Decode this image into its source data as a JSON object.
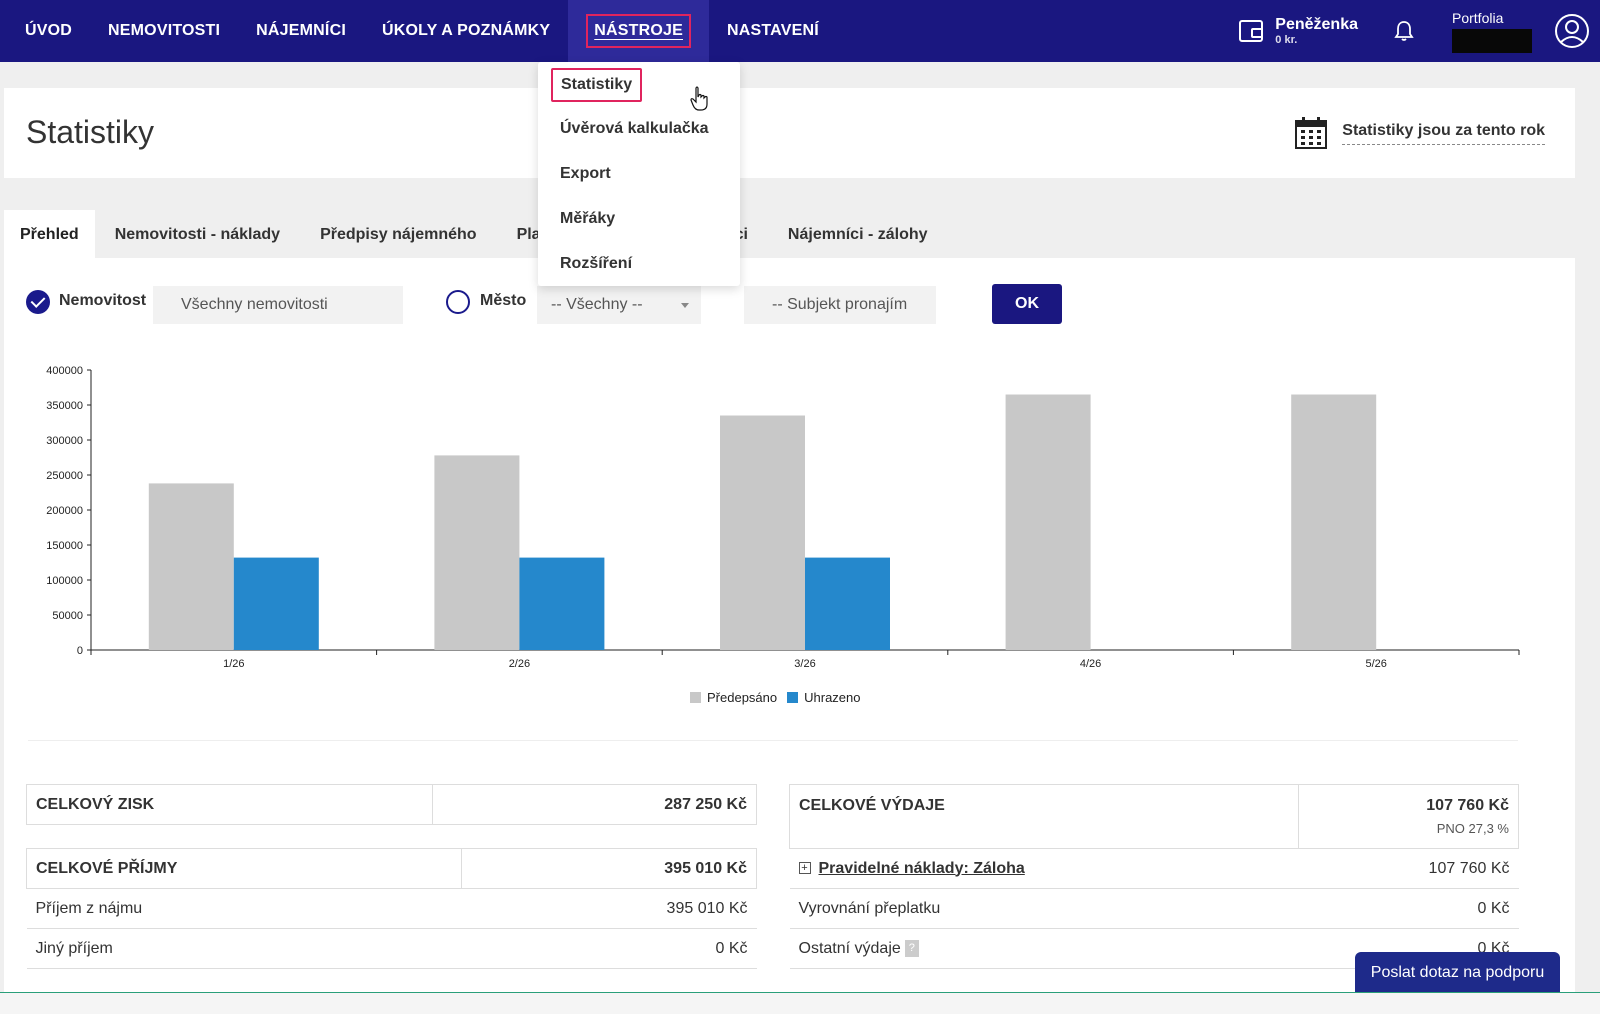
{
  "nav": {
    "items": [
      "ÚVOD",
      "NEMOVITOSTI",
      "NÁJEMNÍCI",
      "ÚKOLY A POZNÁMKY",
      "NÁSTROJE",
      "NASTAVENÍ"
    ],
    "active": "NÁSTROJE",
    "wallet": {
      "title": "Peněženka",
      "amount": "0 kr."
    },
    "portfolia_label": "Portfolia",
    "icons": {
      "wallet": "wallet-icon",
      "bell": "bell-icon",
      "user": "user-icon"
    }
  },
  "dropdown": {
    "items": [
      "Statistiky",
      "Úvěrová kalkulačka",
      "Export",
      "Měřáky",
      "Rozšíření"
    ],
    "active": "Statistiky"
  },
  "header": {
    "title": "Statistiky",
    "period": "Statistiky jsou za tento rok",
    "calendar_icon": "calendar-icon"
  },
  "tabs": [
    "Přehled",
    "Nemovitosti - náklady",
    "Předpisy nájemného",
    "Platby",
    "ci",
    "Nájemníci - zálohy"
  ],
  "filters": {
    "property_label": "Nemovitost",
    "property_value": "Všechny nemovitosti",
    "city_label": "Město",
    "city_value": "-- Všechny --",
    "subject_placeholder": "-- Subjekt pronajím",
    "ok_label": "OK"
  },
  "chart_data": {
    "type": "bar",
    "categories": [
      "1/26",
      "2/26",
      "3/26",
      "4/26",
      "5/26"
    ],
    "series": [
      {
        "name": "Předepsáno",
        "color": "#c8c8c8",
        "values": [
          238000,
          278000,
          335000,
          365000,
          365000
        ]
      },
      {
        "name": "Uhrazeno",
        "color": "#2588cc",
        "values": [
          132000,
          132000,
          132000,
          0,
          0
        ]
      }
    ],
    "ylim": [
      0,
      400000
    ],
    "yticks": [
      0,
      50000,
      100000,
      150000,
      200000,
      250000,
      300000,
      350000,
      400000
    ],
    "legend_position": "bottom-center",
    "grid": false
  },
  "summary_left": {
    "profit_label": "CELKOVÝ ZISK",
    "profit_value": "287 250 Kč",
    "income_label": "CELKOVÉ PŘÍJMY",
    "income_value": "395 010 Kč",
    "rows": [
      {
        "label": "Příjem z nájmu",
        "value": "395 010 Kč"
      },
      {
        "label": "Jiný příjem",
        "value": "0 Kč"
      }
    ]
  },
  "summary_right": {
    "expenses_label": "CELKOVÉ VÝDAJE",
    "expenses_value": "107 760 Kč",
    "pno": "PNO 27,3 %",
    "rows": [
      {
        "label": "Pravidelné náklady: Záloha",
        "value": "107 760 Kč"
      },
      {
        "label": "Vyrovnání přeplatku",
        "value": "0 Kč"
      },
      {
        "label": "Ostatní výdaje",
        "value": "0 Kč",
        "help": "?"
      }
    ]
  },
  "support_button": "Poslat dotaz na podporu"
}
